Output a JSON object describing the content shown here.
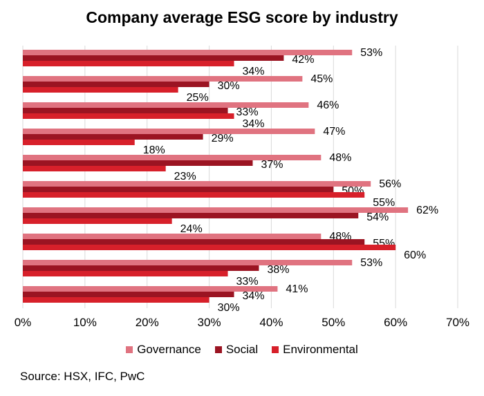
{
  "chart_data": {
    "type": "bar",
    "orientation": "horizontal",
    "title": "Company average ESG score by industry",
    "xlabel": "",
    "ylabel": "",
    "xlim": [
      0,
      70
    ],
    "x_ticks": [
      "0%",
      "10%",
      "20%",
      "30%",
      "40%",
      "50%",
      "60%",
      "70%"
    ],
    "grid": true,
    "legend_position": "bottom",
    "series": [
      {
        "name": "Governance",
        "color": "#e07380",
        "values": [
          53,
          45,
          46,
          47,
          48,
          56,
          62,
          48,
          53,
          41
        ]
      },
      {
        "name": "Social",
        "color": "#9b1422",
        "values": [
          42,
          30,
          33,
          29,
          37,
          50,
          54,
          55,
          38,
          34
        ]
      },
      {
        "name": "Environmental",
        "color": "#d7202a",
        "values": [
          34,
          25,
          34,
          18,
          23,
          55,
          24,
          60,
          33,
          30
        ]
      }
    ]
  },
  "source": "Source: HSX, IFC, PwC"
}
